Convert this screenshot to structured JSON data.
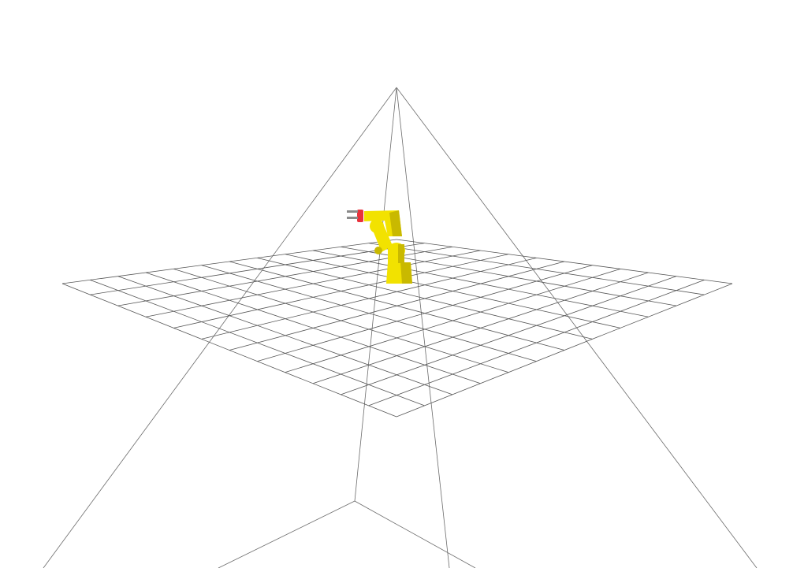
{
  "scene": {
    "background_color": "#ffffff",
    "grid": {
      "visible": true,
      "divisions": 12,
      "line_color": "#555555"
    },
    "camera_frustum": {
      "visible": true,
      "line_color": "#6b6b6b"
    },
    "robot": {
      "type": "articulated-arm",
      "body_color": "#f2e200",
      "shade_color": "#c9b900",
      "gripper_accent_color": "#e8323c",
      "gripper_color": "#8a8a8a"
    }
  }
}
